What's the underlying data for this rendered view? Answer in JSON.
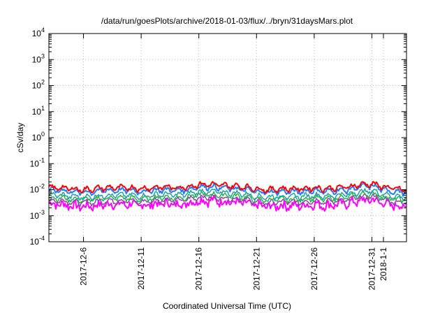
{
  "chart_data": {
    "type": "line",
    "title": "/data/run/goesPlots/archive/2018-01-03/flux/../bryn/31daysMars.plot",
    "xlabel": "Coordinated Universal Time (UTC)",
    "ylabel": "cSv/day",
    "yscale": "log",
    "ylim": [
      0.0001,
      10000
    ],
    "y_ticks": [
      {
        "value": 0.0001,
        "base": "10",
        "exp": "-4"
      },
      {
        "value": 0.001,
        "base": "10",
        "exp": "-3"
      },
      {
        "value": 0.01,
        "base": "10",
        "exp": "-2"
      },
      {
        "value": 0.1,
        "base": "10",
        "exp": "-1"
      },
      {
        "value": 1,
        "base": "10",
        "exp": "0"
      },
      {
        "value": 10,
        "base": "10",
        "exp": "1"
      },
      {
        "value": 100,
        "base": "10",
        "exp": "2"
      },
      {
        "value": 1000,
        "base": "10",
        "exp": "3"
      },
      {
        "value": 10000,
        "base": "10",
        "exp": "4"
      }
    ],
    "xlim": [
      "2017-12-03",
      "2018-01-03"
    ],
    "x_ticks": [
      "2017-12-6",
      "2017-12-11",
      "2017-12-16",
      "2017-12-21",
      "2017-12-26",
      "2017-12-31",
      "2018-1-1"
    ],
    "x_tick_dates": [
      "2017-12-06",
      "2017-12-11",
      "2017-12-16",
      "2017-12-21",
      "2017-12-26",
      "2017-12-31",
      "2018-01-01"
    ],
    "grid": true,
    "x_daily": [
      "2017-12-03",
      "2017-12-04",
      "2017-12-05",
      "2017-12-06",
      "2017-12-07",
      "2017-12-08",
      "2017-12-09",
      "2017-12-10",
      "2017-12-11",
      "2017-12-12",
      "2017-12-13",
      "2017-12-14",
      "2017-12-15",
      "2017-12-16",
      "2017-12-17",
      "2017-12-18",
      "2017-12-19",
      "2017-12-20",
      "2017-12-21",
      "2017-12-22",
      "2017-12-23",
      "2017-12-24",
      "2017-12-25",
      "2017-12-26",
      "2017-12-27",
      "2017-12-28",
      "2017-12-29",
      "2017-12-30",
      "2017-12-31",
      "2018-01-01",
      "2018-01-02",
      "2018-01-03"
    ],
    "series": [
      {
        "color": "#ff0000",
        "values": [
          0.012,
          0.012,
          0.011,
          0.01,
          0.011,
          0.012,
          0.012,
          0.012,
          0.011,
          0.012,
          0.013,
          0.012,
          0.013,
          0.016,
          0.016,
          0.015,
          0.014,
          0.013,
          0.011,
          0.01,
          0.011,
          0.011,
          0.011,
          0.012,
          0.011,
          0.012,
          0.013,
          0.016,
          0.017,
          0.013,
          0.011,
          0.01
        ],
        "lw": 2
      },
      {
        "color": "#1e7cff",
        "values": [
          0.0095,
          0.0095,
          0.0085,
          0.008,
          0.0085,
          0.0095,
          0.0095,
          0.0095,
          0.0085,
          0.0095,
          0.01,
          0.0095,
          0.01,
          0.013,
          0.013,
          0.012,
          0.011,
          0.01,
          0.0085,
          0.008,
          0.0085,
          0.0085,
          0.0085,
          0.0095,
          0.0085,
          0.0095,
          0.01,
          0.013,
          0.014,
          0.01,
          0.0085,
          0.008
        ],
        "lw": 2
      },
      {
        "color": "#1fa3a3",
        "values": [
          0.0065,
          0.0062,
          0.0056,
          0.0052,
          0.0056,
          0.0062,
          0.0062,
          0.0062,
          0.0056,
          0.0062,
          0.0068,
          0.0062,
          0.0068,
          0.0085,
          0.0085,
          0.008,
          0.0074,
          0.0068,
          0.0056,
          0.0052,
          0.0056,
          0.0056,
          0.0056,
          0.0062,
          0.0056,
          0.0062,
          0.0068,
          0.0085,
          0.009,
          0.0068,
          0.0056,
          0.0052
        ],
        "lw": 1.5
      },
      {
        "color": "#29b249",
        "values": [
          0.005,
          0.0048,
          0.0043,
          0.004,
          0.0043,
          0.0048,
          0.0048,
          0.0048,
          0.0043,
          0.0048,
          0.0052,
          0.0048,
          0.0052,
          0.0065,
          0.0065,
          0.0062,
          0.0057,
          0.0052,
          0.0043,
          0.004,
          0.0043,
          0.0043,
          0.0043,
          0.0048,
          0.0043,
          0.0048,
          0.0052,
          0.0065,
          0.007,
          0.0052,
          0.0043,
          0.004
        ],
        "lw": 1.5
      },
      {
        "color": "#8e44ad",
        "values": [
          0.004,
          0.0038,
          0.0034,
          0.0032,
          0.0034,
          0.0038,
          0.0038,
          0.0038,
          0.0034,
          0.0038,
          0.0042,
          0.0038,
          0.0042,
          0.0052,
          0.0052,
          0.0049,
          0.0046,
          0.0042,
          0.0034,
          0.0032,
          0.0034,
          0.0034,
          0.0034,
          0.0038,
          0.0034,
          0.0038,
          0.0042,
          0.0052,
          0.0056,
          0.0042,
          0.0034,
          0.0032
        ],
        "lw": 1.5
      },
      {
        "color": "#ff00ff",
        "values": [
          0.003,
          0.0028,
          0.0025,
          0.0023,
          0.0025,
          0.0028,
          0.0028,
          0.0028,
          0.0025,
          0.0028,
          0.0031,
          0.0028,
          0.0031,
          0.0039,
          0.0039,
          0.0037,
          0.0034,
          0.0031,
          0.0025,
          0.0023,
          0.0025,
          0.0025,
          0.0025,
          0.0028,
          0.0025,
          0.0028,
          0.0031,
          0.0039,
          0.0042,
          0.0031,
          0.0025,
          0.0023
        ],
        "lw": 2
      }
    ]
  }
}
